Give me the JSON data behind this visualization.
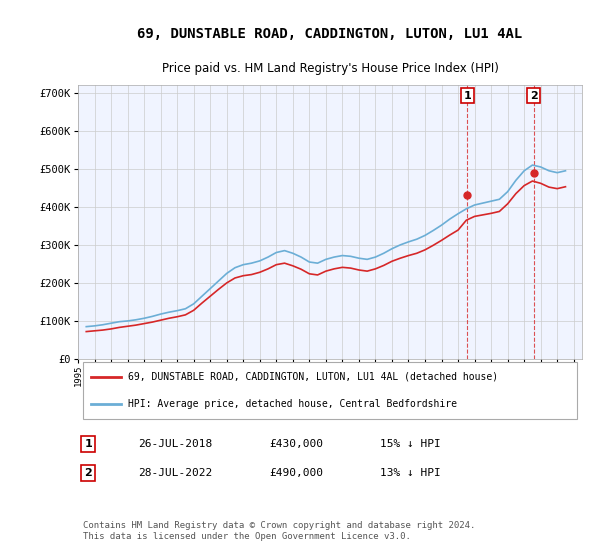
{
  "title": "69, DUNSTABLE ROAD, CADDINGTON, LUTON, LU1 4AL",
  "subtitle": "Price paid vs. HM Land Registry's House Price Index (HPI)",
  "hpi_label": "HPI: Average price, detached house, Central Bedfordshire",
  "price_label": "69, DUNSTABLE ROAD, CADDINGTON, LUTON, LU1 4AL (detached house)",
  "hpi_color": "#6baed6",
  "price_color": "#d62728",
  "marker_color": "#d62728",
  "dashed_color": "#d62728",
  "background_color": "#ffffff",
  "grid_color": "#cccccc",
  "plot_bg": "#f0f4ff",
  "ylim": [
    0,
    720000
  ],
  "yticks": [
    0,
    100000,
    200000,
    300000,
    400000,
    500000,
    600000,
    700000
  ],
  "ytick_labels": [
    "£0",
    "£100K",
    "£200K",
    "£300K",
    "£400K",
    "£500K",
    "£600K",
    "£700K"
  ],
  "purchases": [
    {
      "date": 2018.57,
      "price": 430000,
      "label": "1"
    },
    {
      "date": 2022.57,
      "price": 490000,
      "label": "2"
    }
  ],
  "purchase_table": [
    {
      "num": "1",
      "date": "26-JUL-2018",
      "price": "£430,000",
      "rel": "15% ↓ HPI"
    },
    {
      "num": "2",
      "date": "28-JUL-2022",
      "price": "£490,000",
      "rel": "13% ↓ HPI"
    }
  ],
  "footer": "Contains HM Land Registry data © Crown copyright and database right 2024.\nThis data is licensed under the Open Government Licence v3.0.",
  "hpi_data": {
    "years": [
      1995.5,
      1996.0,
      1996.5,
      1997.0,
      1997.5,
      1998.0,
      1998.5,
      1999.0,
      1999.5,
      2000.0,
      2000.5,
      2001.0,
      2001.5,
      2002.0,
      2002.5,
      2003.0,
      2003.5,
      2004.0,
      2004.5,
      2005.0,
      2005.5,
      2006.0,
      2006.5,
      2007.0,
      2007.5,
      2008.0,
      2008.5,
      2009.0,
      2009.5,
      2010.0,
      2010.5,
      2011.0,
      2011.5,
      2012.0,
      2012.5,
      2013.0,
      2013.5,
      2014.0,
      2014.5,
      2015.0,
      2015.5,
      2016.0,
      2016.5,
      2017.0,
      2017.5,
      2018.0,
      2018.5,
      2019.0,
      2019.5,
      2020.0,
      2020.5,
      2021.0,
      2021.5,
      2022.0,
      2022.5,
      2023.0,
      2023.5,
      2024.0,
      2024.5
    ],
    "values": [
      85000,
      87000,
      90000,
      94000,
      98000,
      100000,
      103000,
      107000,
      112000,
      118000,
      123000,
      127000,
      132000,
      145000,
      165000,
      185000,
      205000,
      225000,
      240000,
      248000,
      252000,
      258000,
      268000,
      280000,
      285000,
      278000,
      268000,
      255000,
      252000,
      262000,
      268000,
      272000,
      270000,
      265000,
      262000,
      268000,
      278000,
      290000,
      300000,
      308000,
      315000,
      325000,
      338000,
      352000,
      368000,
      382000,
      395000,
      405000,
      410000,
      415000,
      420000,
      440000,
      470000,
      495000,
      510000,
      505000,
      495000,
      490000,
      495000
    ]
  },
  "price_data": {
    "years": [
      1995.5,
      1996.0,
      1996.5,
      1997.0,
      1997.5,
      1998.0,
      1998.5,
      1999.0,
      1999.5,
      2000.0,
      2000.5,
      2001.0,
      2001.5,
      2002.0,
      2002.5,
      2003.0,
      2003.5,
      2004.0,
      2004.5,
      2005.0,
      2005.5,
      2006.0,
      2006.5,
      2007.0,
      2007.5,
      2008.0,
      2008.5,
      2009.0,
      2009.5,
      2010.0,
      2010.5,
      2011.0,
      2011.5,
      2012.0,
      2012.5,
      2013.0,
      2013.5,
      2014.0,
      2014.5,
      2015.0,
      2015.5,
      2016.0,
      2016.5,
      2017.0,
      2017.5,
      2018.0,
      2018.5,
      2019.0,
      2019.5,
      2020.0,
      2020.5,
      2021.0,
      2021.5,
      2022.0,
      2022.5,
      2023.0,
      2023.5,
      2024.0,
      2024.5
    ],
    "values": [
      72000,
      74000,
      76000,
      79000,
      83000,
      86000,
      89000,
      93000,
      97000,
      102000,
      107000,
      111000,
      116000,
      128000,
      147000,
      165000,
      183000,
      200000,
      213000,
      219000,
      222000,
      228000,
      237000,
      248000,
      252000,
      245000,
      236000,
      224000,
      221000,
      231000,
      237000,
      241000,
      239000,
      234000,
      231000,
      237000,
      246000,
      257000,
      265000,
      272000,
      278000,
      287000,
      299000,
      312000,
      326000,
      339000,
      365000,
      375000,
      379000,
      383000,
      388000,
      408000,
      435000,
      456000,
      468000,
      462000,
      452000,
      448000,
      453000
    ]
  }
}
